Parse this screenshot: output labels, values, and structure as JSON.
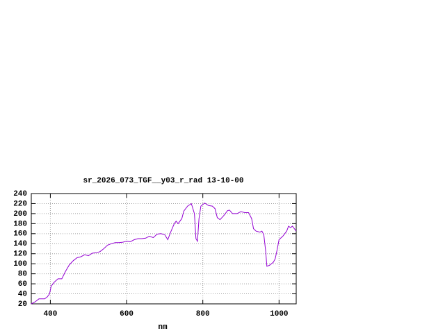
{
  "chart_data": {
    "type": "line",
    "title": "sr_2026_073_TGF__y03_r_rad 13-10-00",
    "x_label": "nm",
    "xlim": [
      350,
      1045
    ],
    "ylim": [
      20,
      240
    ],
    "xticks": [
      400,
      600,
      800,
      1000
    ],
    "yticks": [
      20,
      40,
      60,
      80,
      100,
      120,
      140,
      160,
      180,
      200,
      220,
      240
    ],
    "grid": true,
    "series": [
      {
        "color": "#9400d3",
        "x": [
          350,
          360,
          370,
          385,
          392,
          398,
          402,
          410,
          420,
          430,
          440,
          450,
          460,
          470,
          480,
          490,
          500,
          510,
          520,
          530,
          540,
          550,
          560,
          570,
          580,
          590,
          600,
          610,
          620,
          630,
          640,
          650,
          660,
          670,
          680,
          690,
          700,
          708,
          715,
          725,
          730,
          735,
          745,
          750,
          760,
          770,
          778,
          782,
          786,
          790,
          795,
          805,
          815,
          825,
          832,
          838,
          845,
          855,
          865,
          870,
          878,
          890,
          900,
          910,
          920,
          928,
          933,
          940,
          950,
          955,
          960,
          965,
          968,
          975,
          985,
          990,
          995,
          1000,
          1010,
          1020,
          1025,
          1030,
          1035,
          1040,
          1045
        ],
        "values": [
          20,
          24,
          30,
          30,
          34,
          40,
          55,
          63,
          70,
          70,
          85,
          98,
          106,
          112,
          114,
          118,
          116,
          121,
          122,
          124,
          130,
          137,
          140,
          142,
          142,
          143,
          145,
          144,
          148,
          150,
          150,
          151,
          155,
          152,
          159,
          160,
          158,
          148,
          162,
          180,
          185,
          180,
          190,
          205,
          215,
          220,
          200,
          150,
          145,
          190,
          215,
          221,
          216,
          215,
          210,
          192,
          188,
          196,
          206,
          207,
          200,
          200,
          204,
          202,
          202,
          190,
          170,
          165,
          163,
          165,
          158,
          125,
          95,
          97,
          103,
          110,
          128,
          148,
          155,
          165,
          175,
          172,
          175,
          170,
          165
        ]
      }
    ]
  }
}
